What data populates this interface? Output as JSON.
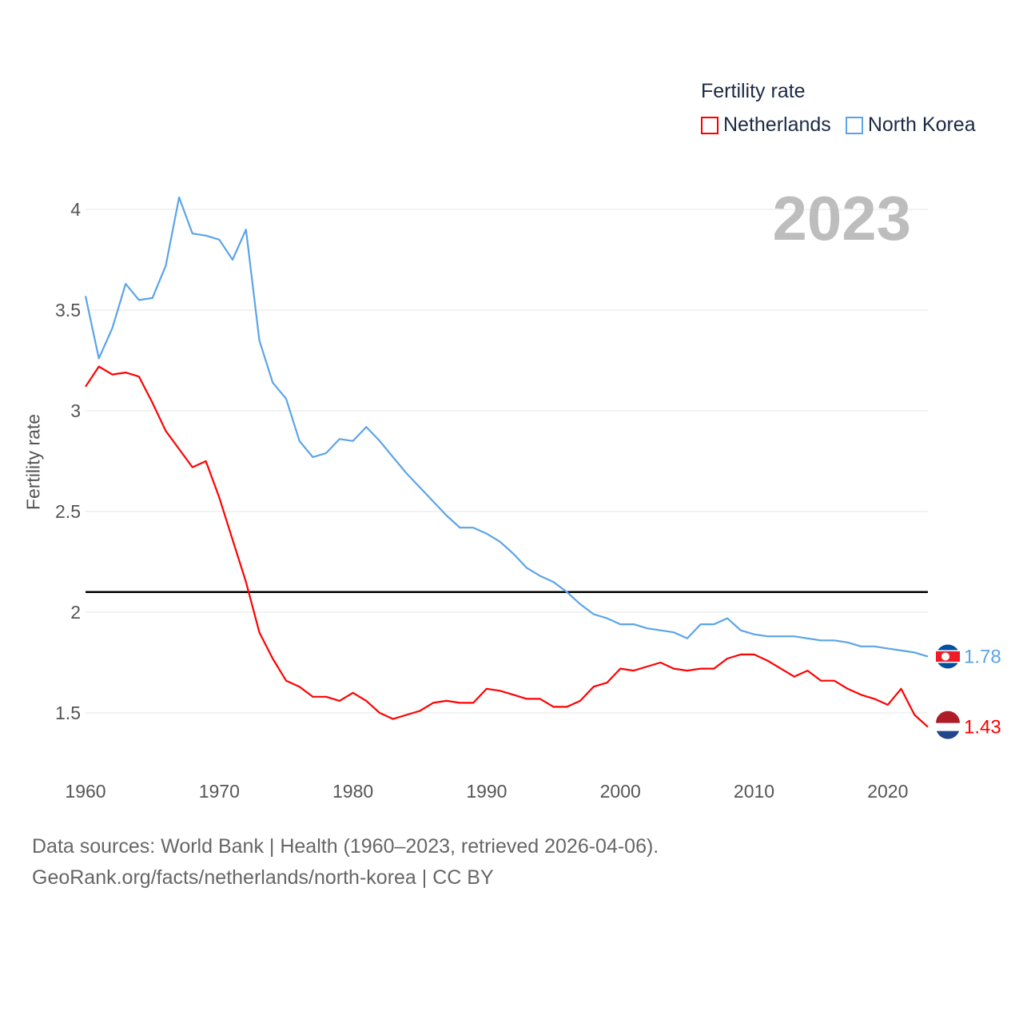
{
  "chart_data": {
    "type": "line",
    "title": "",
    "legend_title": "Fertility rate",
    "legend_position": "top-right",
    "ylabel": "Fertility rate",
    "xlabel": "",
    "year_label": "2023",
    "xlim": [
      1960,
      2023
    ],
    "ylim": [
      1.25,
      4.1
    ],
    "yticks": [
      "4",
      "3.5",
      "3",
      "2.5",
      "2",
      "1.5"
    ],
    "ytick_values": [
      4,
      3.5,
      3,
      2.5,
      2,
      1.5
    ],
    "xticks": [
      "1960",
      "1970",
      "1980",
      "1990",
      "2000",
      "2010",
      "2020"
    ],
    "xtick_values": [
      1960,
      1970,
      1980,
      1990,
      2000,
      2010,
      2020
    ],
    "grid": true,
    "reference_line": 2.1,
    "x": [
      1960,
      1961,
      1962,
      1963,
      1964,
      1965,
      1966,
      1967,
      1968,
      1969,
      1970,
      1971,
      1972,
      1973,
      1974,
      1975,
      1976,
      1977,
      1978,
      1979,
      1980,
      1981,
      1982,
      1983,
      1984,
      1985,
      1986,
      1987,
      1988,
      1989,
      1990,
      1991,
      1992,
      1993,
      1994,
      1995,
      1996,
      1997,
      1998,
      1999,
      2000,
      2001,
      2002,
      2003,
      2004,
      2005,
      2006,
      2007,
      2008,
      2009,
      2010,
      2011,
      2012,
      2013,
      2014,
      2015,
      2016,
      2017,
      2018,
      2019,
      2020,
      2021,
      2022,
      2023
    ],
    "series": [
      {
        "name": "Netherlands",
        "color": "#ff0000",
        "end_label": "1.43",
        "values": [
          3.12,
          3.22,
          3.18,
          3.19,
          3.17,
          3.04,
          2.9,
          2.81,
          2.72,
          2.75,
          2.57,
          2.36,
          2.15,
          1.9,
          1.77,
          1.66,
          1.63,
          1.58,
          1.58,
          1.56,
          1.6,
          1.56,
          1.5,
          1.47,
          1.49,
          1.51,
          1.55,
          1.56,
          1.55,
          1.55,
          1.62,
          1.61,
          1.59,
          1.57,
          1.57,
          1.53,
          1.53,
          1.56,
          1.63,
          1.65,
          1.72,
          1.71,
          1.73,
          1.75,
          1.72,
          1.71,
          1.72,
          1.72,
          1.77,
          1.79,
          1.79,
          1.76,
          1.72,
          1.68,
          1.71,
          1.66,
          1.66,
          1.62,
          1.59,
          1.57,
          1.54,
          1.62,
          1.49,
          1.43
        ]
      },
      {
        "name": "North Korea",
        "color": "#5ba4e8",
        "end_label": "1.78",
        "values": [
          3.57,
          3.26,
          3.41,
          3.63,
          3.55,
          3.56,
          3.72,
          4.06,
          3.88,
          3.87,
          3.85,
          3.75,
          3.9,
          3.35,
          3.14,
          3.06,
          2.85,
          2.77,
          2.79,
          2.86,
          2.85,
          2.92,
          2.85,
          2.77,
          2.69,
          2.62,
          2.55,
          2.48,
          2.42,
          2.42,
          2.39,
          2.35,
          2.29,
          2.22,
          2.18,
          2.15,
          2.1,
          2.04,
          1.99,
          1.97,
          1.94,
          1.94,
          1.92,
          1.91,
          1.9,
          1.87,
          1.94,
          1.94,
          1.97,
          1.91,
          1.89,
          1.88,
          1.88,
          1.88,
          1.87,
          1.86,
          1.86,
          1.85,
          1.83,
          1.83,
          1.82,
          1.81,
          1.8,
          1.78
        ]
      }
    ]
  },
  "footer": {
    "source_line": "Data sources: World Bank | Health (1960–2023, retrieved 2026-04-06).",
    "credit_line": "GeoRank.org/facts/netherlands/north-korea | CC BY"
  }
}
